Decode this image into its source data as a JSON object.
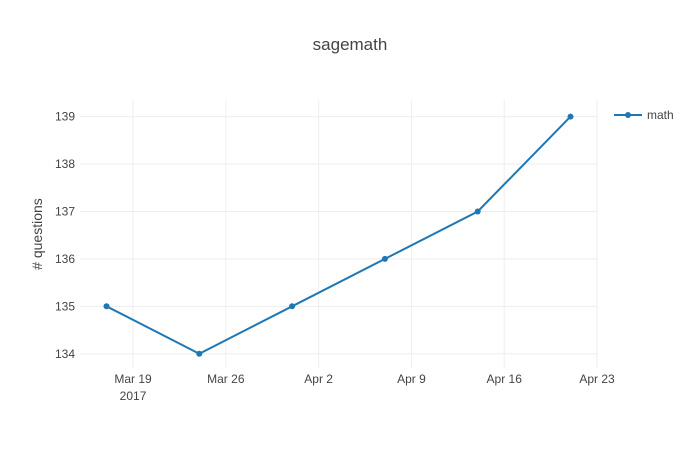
{
  "chart_data": {
    "type": "line",
    "title": "sagemath",
    "xlabel": "",
    "ylabel": "# questions",
    "x": [
      "2017-03-17",
      "2017-03-24",
      "2017-03-31",
      "2017-04-07",
      "2017-04-14",
      "2017-04-21"
    ],
    "series": [
      {
        "name": "math",
        "color": "#1f77b4",
        "values": [
          135,
          134,
          135,
          136,
          137,
          139
        ]
      }
    ],
    "xlim": [
      "2017-03-15",
      "2017-04-23"
    ],
    "ylim": [
      133.7,
      139.35
    ],
    "x_ticks": [
      {
        "date": "2017-03-19",
        "label": "Mar 19",
        "sublabel": "2017"
      },
      {
        "date": "2017-03-26",
        "label": "Mar 26",
        "sublabel": ""
      },
      {
        "date": "2017-04-02",
        "label": "Apr 2",
        "sublabel": ""
      },
      {
        "date": "2017-04-09",
        "label": "Apr 9",
        "sublabel": ""
      },
      {
        "date": "2017-04-16",
        "label": "Apr 16",
        "sublabel": ""
      },
      {
        "date": "2017-04-23",
        "label": "Apr 23",
        "sublabel": ""
      }
    ],
    "y_ticks": [
      134,
      135,
      136,
      137,
      138,
      139
    ],
    "grid": true,
    "legend_position": "top-right"
  }
}
